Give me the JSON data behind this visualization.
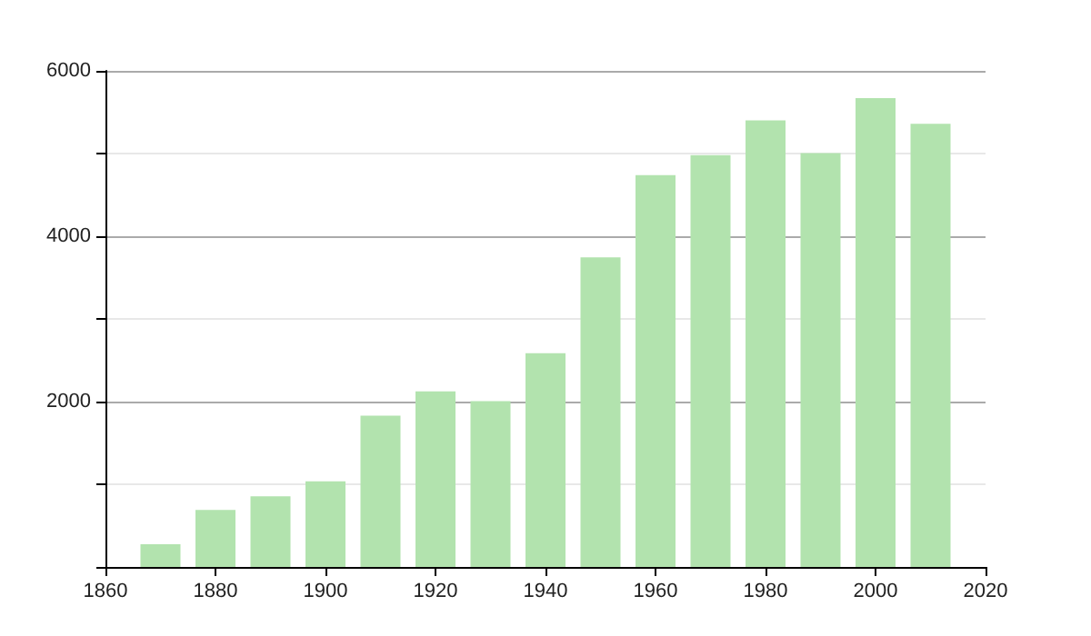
{
  "chart_data": {
    "type": "bar",
    "x": [
      1870,
      1880,
      1890,
      1900,
      1910,
      1920,
      1930,
      1940,
      1950,
      1960,
      1970,
      1980,
      1990,
      2000,
      2010
    ],
    "values": [
      275,
      690,
      855,
      1035,
      1830,
      2125,
      2005,
      2585,
      3745,
      4740,
      4980,
      5400,
      5005,
      5670,
      5360
    ],
    "color": "#b2e3ae",
    "xlim": [
      1860,
      2020
    ],
    "xticks": [
      1860,
      1880,
      1900,
      1920,
      1940,
      1960,
      1980,
      2000,
      2020
    ],
    "ylim": [
      0,
      6000
    ],
    "yticks": [
      {
        "value": 0,
        "label": null
      },
      {
        "value": 1000,
        "label": null
      },
      2000,
      {
        "value": 3000,
        "label": null
      },
      4000,
      {
        "value": 5000,
        "label": null
      },
      6000
    ],
    "grid": "y"
  }
}
